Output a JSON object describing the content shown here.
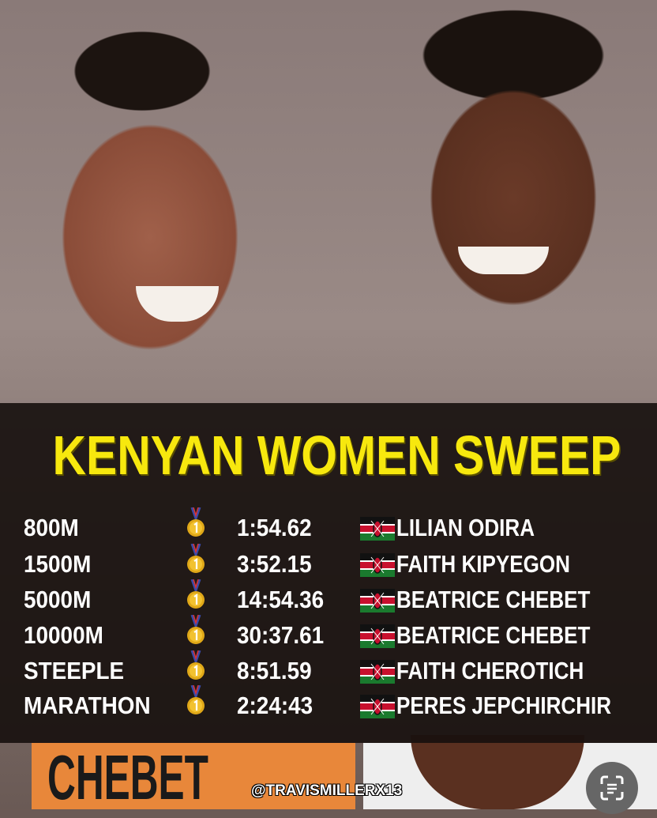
{
  "title": "KENYAN WOMEN SWEEP",
  "results": [
    {
      "event": "800M",
      "medal": "gold-medal-icon",
      "time": "1:54.62",
      "flag": "kenya-flag-icon",
      "athlete": "LILIAN ODIRA"
    },
    {
      "event": "1500M",
      "medal": "gold-medal-icon",
      "time": "3:52.15",
      "flag": "kenya-flag-icon",
      "athlete": "FAITH KIPYEGON"
    },
    {
      "event": "5000M",
      "medal": "gold-medal-icon",
      "time": "14:54.36",
      "flag": "kenya-flag-icon",
      "athlete": "BEATRICE CHEBET"
    },
    {
      "event": "10000M",
      "medal": "gold-medal-icon",
      "time": "30:37.61",
      "flag": "kenya-flag-icon",
      "athlete": "BEATRICE CHEBET"
    },
    {
      "event": "STEEPLE",
      "medal": "gold-medal-icon",
      "time": "8:51.59",
      "flag": "kenya-flag-icon",
      "athlete": "FAITH CHEROTICH"
    },
    {
      "event": "MARATHON",
      "medal": "gold-medal-icon",
      "time": "2:24:43",
      "flag": "kenya-flag-icon",
      "athlete": "PERES JEPCHIRCHIR"
    }
  ],
  "photo": {
    "bib_text": "CHEBET"
  },
  "watermark": "@TRAVISMILLERX13",
  "colors": {
    "title": "#f7e80e",
    "panel": "#16100d"
  }
}
